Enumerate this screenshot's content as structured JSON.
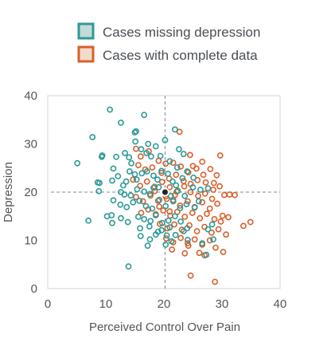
{
  "chart_data": {
    "type": "scatter",
    "xlabel": "Perceived Control Over Pain",
    "ylabel": "Depression",
    "xlim": [
      0,
      40
    ],
    "ylim": [
      0,
      40
    ],
    "xticks": [
      "0",
      "10",
      "20",
      "30",
      "40"
    ],
    "yticks": [
      "0",
      "10",
      "20",
      "30",
      "40"
    ],
    "grid": false,
    "legend_position": "top",
    "reference_lines": {
      "x": 20.2,
      "y": 20
    },
    "mean_point": {
      "x": 20.2,
      "y": 20
    },
    "series": [
      {
        "name": "Cases missing depression",
        "color": "#2e9a97",
        "fill": "#c3dbd9",
        "points": [
          [
            10.7,
            37.1
          ],
          [
            12.6,
            34.4
          ],
          [
            16.6,
            36.0
          ],
          [
            15.0,
            32.4
          ],
          [
            15.2,
            32.6
          ],
          [
            21.9,
            33.0
          ],
          [
            5.1,
            26.0
          ],
          [
            7.7,
            31.4
          ],
          [
            9.3,
            27.3
          ],
          [
            9.4,
            27.6
          ],
          [
            11.3,
            24.9
          ],
          [
            11.8,
            27.3
          ],
          [
            13.3,
            28.1
          ],
          [
            14.0,
            27.2
          ],
          [
            14.4,
            26.0
          ],
          [
            15.1,
            30.5
          ],
          [
            16.1,
            28.9
          ],
          [
            17.0,
            28.1
          ],
          [
            17.3,
            30.0
          ],
          [
            17.8,
            27.4
          ],
          [
            18.6,
            29.5
          ],
          [
            19.4,
            27.5
          ],
          [
            20.2,
            30.8
          ],
          [
            21.0,
            26.4
          ],
          [
            22.3,
            25.1
          ],
          [
            22.6,
            28.9
          ],
          [
            23.4,
            27.9
          ],
          [
            8.9,
            21.9
          ],
          [
            8.6,
            22.0
          ],
          [
            8.8,
            20.2
          ],
          [
            11.1,
            22.4
          ],
          [
            12.1,
            23.3
          ],
          [
            13.5,
            22.2
          ],
          [
            13.0,
            21.4
          ],
          [
            14.1,
            24.3
          ],
          [
            15.0,
            23.7
          ],
          [
            15.3,
            22.6
          ],
          [
            16.2,
            23.9
          ],
          [
            17.1,
            24.3
          ],
          [
            18.2,
            23.4
          ],
          [
            18.9,
            22.6
          ],
          [
            19.6,
            24.4
          ],
          [
            20.7,
            23.8
          ],
          [
            21.5,
            22.2
          ],
          [
            22.1,
            21.4
          ],
          [
            23.2,
            22.9
          ],
          [
            24.0,
            24.3
          ],
          [
            25.1,
            23.0
          ],
          [
            12.6,
            20.0
          ],
          [
            13.2,
            19.5
          ],
          [
            14.3,
            19.3
          ],
          [
            15.4,
            20.6
          ],
          [
            16.6,
            20.1
          ],
          [
            17.6,
            19.6
          ],
          [
            18.2,
            20.9
          ],
          [
            19.1,
            21.0
          ],
          [
            21.2,
            19.2
          ],
          [
            22.4,
            20.3
          ],
          [
            23.6,
            19.2
          ],
          [
            25.0,
            21.0
          ],
          [
            26.3,
            20.5
          ],
          [
            27.6,
            20.8
          ],
          [
            11.3,
            18.3
          ],
          [
            12.5,
            17.4
          ],
          [
            13.6,
            16.9
          ],
          [
            14.7,
            17.9
          ],
          [
            15.8,
            18.2
          ],
          [
            16.9,
            17.1
          ],
          [
            18.0,
            16.6
          ],
          [
            19.2,
            18.4
          ],
          [
            20.3,
            17.1
          ],
          [
            21.6,
            18.1
          ],
          [
            22.8,
            16.7
          ],
          [
            23.9,
            17.5
          ],
          [
            25.3,
            16.8
          ],
          [
            10.2,
            15.0
          ],
          [
            11.0,
            15.2
          ],
          [
            12.6,
            14.6
          ],
          [
            13.8,
            13.8
          ],
          [
            15.6,
            14.9
          ],
          [
            16.6,
            14.4
          ],
          [
            17.7,
            14.0
          ],
          [
            18.6,
            15.2
          ],
          [
            19.7,
            13.6
          ],
          [
            20.8,
            14.1
          ],
          [
            21.9,
            15.0
          ],
          [
            22.9,
            13.9
          ],
          [
            24.0,
            12.5
          ],
          [
            7.0,
            14.1
          ],
          [
            11.1,
            13.6
          ],
          [
            15.9,
            12.5
          ],
          [
            17.5,
            12.9
          ],
          [
            19.0,
            11.8
          ],
          [
            20.5,
            11.0
          ],
          [
            22.0,
            11.1
          ],
          [
            23.4,
            11.9
          ],
          [
            27.6,
            12.3
          ],
          [
            28.3,
            13.3
          ],
          [
            16.0,
            10.9
          ],
          [
            17.6,
            10.2
          ],
          [
            18.6,
            11.2
          ],
          [
            20.3,
            9.1
          ],
          [
            21.3,
            9.8
          ],
          [
            24.1,
            10.1
          ],
          [
            26.6,
            9.4
          ],
          [
            27.3,
            7.0
          ],
          [
            28.5,
            10.2
          ],
          [
            13.9,
            4.6
          ],
          [
            17.2,
            8.9
          ],
          [
            19.6,
            12.1
          ],
          [
            21.0,
            12.7
          ],
          [
            26.0,
            18.1
          ]
        ]
      },
      {
        "name": "Cases with complete data",
        "color": "#d9602b",
        "fill": "#f1dbcb",
        "points": [
          [
            22.7,
            32.5
          ],
          [
            29.7,
            27.6
          ],
          [
            24.5,
            27.7
          ],
          [
            25.0,
            25.4
          ],
          [
            26.6,
            26.3
          ],
          [
            15.2,
            29.0
          ],
          [
            16.0,
            27.4
          ],
          [
            17.4,
            28.5
          ],
          [
            19.1,
            26.5
          ],
          [
            20.3,
            25.9
          ],
          [
            21.6,
            26.1
          ],
          [
            22.9,
            25.3
          ],
          [
            24.2,
            24.1
          ],
          [
            25.6,
            24.9
          ],
          [
            26.8,
            23.6
          ],
          [
            28.0,
            24.8
          ],
          [
            29.1,
            23.5
          ],
          [
            28.6,
            21.9
          ],
          [
            15.6,
            25.6
          ],
          [
            16.8,
            24.7
          ],
          [
            18.0,
            25.1
          ],
          [
            19.6,
            24.0
          ],
          [
            20.9,
            22.8
          ],
          [
            22.1,
            23.6
          ],
          [
            23.4,
            22.3
          ],
          [
            24.6,
            21.7
          ],
          [
            25.8,
            22.5
          ],
          [
            27.2,
            22.0
          ],
          [
            28.5,
            20.5
          ],
          [
            29.6,
            21.2
          ],
          [
            30.4,
            19.4
          ],
          [
            31.3,
            19.5
          ],
          [
            32.2,
            19.4
          ],
          [
            14.7,
            22.6
          ],
          [
            15.9,
            21.3
          ],
          [
            17.1,
            22.2
          ],
          [
            18.4,
            21.1
          ],
          [
            19.7,
            22.1
          ],
          [
            21.0,
            21.0
          ],
          [
            22.2,
            20.1
          ],
          [
            23.5,
            21.2
          ],
          [
            24.6,
            20.0
          ],
          [
            25.9,
            19.2
          ],
          [
            27.1,
            19.7
          ],
          [
            28.3,
            18.6
          ],
          [
            15.2,
            19.0
          ],
          [
            16.4,
            18.1
          ],
          [
            17.7,
            19.3
          ],
          [
            19.0,
            18.2
          ],
          [
            20.3,
            19.1
          ],
          [
            21.6,
            18.4
          ],
          [
            22.8,
            17.2
          ],
          [
            24.1,
            18.1
          ],
          [
            25.3,
            16.9
          ],
          [
            26.6,
            17.9
          ],
          [
            27.9,
            16.6
          ],
          [
            29.2,
            17.6
          ],
          [
            30.1,
            15.1
          ],
          [
            16.1,
            15.7
          ],
          [
            17.3,
            16.4
          ],
          [
            18.6,
            15.4
          ],
          [
            19.9,
            16.2
          ],
          [
            21.1,
            15.1
          ],
          [
            22.3,
            15.9
          ],
          [
            23.6,
            14.9
          ],
          [
            24.9,
            15.7
          ],
          [
            26.2,
            14.6
          ],
          [
            27.4,
            15.5
          ],
          [
            28.7,
            14.4
          ],
          [
            29.8,
            13.9
          ],
          [
            31.1,
            14.8
          ],
          [
            33.7,
            13.0
          ],
          [
            34.9,
            13.8
          ],
          [
            19.3,
            13.4
          ],
          [
            20.6,
            12.5
          ],
          [
            21.8,
            13.3
          ],
          [
            23.1,
            12.2
          ],
          [
            24.4,
            13.1
          ],
          [
            25.7,
            11.9
          ],
          [
            27.0,
            12.8
          ],
          [
            28.2,
            11.6
          ],
          [
            29.4,
            12.3
          ],
          [
            30.7,
            11.2
          ],
          [
            20.4,
            10.4
          ],
          [
            21.6,
            9.6
          ],
          [
            22.9,
            10.5
          ],
          [
            24.1,
            9.4
          ],
          [
            25.3,
            10.2
          ],
          [
            26.6,
            9.1
          ],
          [
            27.9,
            10.0
          ],
          [
            28.9,
            8.5
          ],
          [
            30.2,
            7.6
          ],
          [
            21.4,
            8.1
          ],
          [
            23.6,
            7.3
          ],
          [
            24.2,
            8.9
          ],
          [
            26.1,
            7.4
          ],
          [
            27.0,
            6.9
          ],
          [
            24.6,
            2.7
          ],
          [
            28.8,
            1.4
          ],
          [
            19.2,
            17.0
          ],
          [
            21.0,
            16.0
          ],
          [
            20.5,
            18.6
          ],
          [
            18.4,
            20.2
          ],
          [
            21.9,
            19.4
          ]
        ]
      }
    ]
  }
}
